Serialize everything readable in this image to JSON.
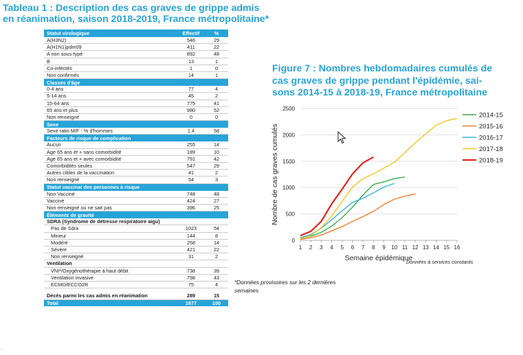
{
  "table": {
    "title_line1": "Tableau 1 : Description des cas graves de grippe admis",
    "title_line2": "en réanimation, saison 2018-2019, France métropolitaine*",
    "col_effectif": "Effectif",
    "col_pct": "%",
    "sections": [
      {
        "header": "Statut virologique",
        "rows": [
          {
            "label": "A(H3N2)",
            "v": "546",
            "p": "29"
          },
          {
            "label": "A(H1N1)pdm09",
            "v": "411",
            "p": "22"
          },
          {
            "label": "A non sous-typé",
            "v": "892",
            "p": "48"
          },
          {
            "label": "B",
            "v": "13",
            "p": "1"
          },
          {
            "label": "Co-infectés",
            "v": "1",
            "p": "0"
          },
          {
            "label": "Non confirmés",
            "v": "14",
            "p": "1"
          }
        ]
      },
      {
        "header": "Classes d'âge",
        "rows": [
          {
            "label": "0-4 ans",
            "v": "77",
            "p": "4"
          },
          {
            "label": "5-14 ans",
            "v": "45",
            "p": "2"
          },
          {
            "label": "15-64 ans",
            "v": "775",
            "p": "41"
          },
          {
            "label": "65 ans et plus",
            "v": "980",
            "p": "52"
          },
          {
            "label": "Non renseigné",
            "v": "0",
            "p": "0"
          }
        ]
      },
      {
        "header": "Sexe",
        "rows": [
          {
            "label": "Sexe ratio M/F - % d'hommes",
            "v": "1.4",
            "p": "58"
          }
        ]
      },
      {
        "header": "Facteurs de risque de complication",
        "rows": [
          {
            "label": "Aucun",
            "v": "255",
            "p": "14"
          },
          {
            "label": "Age 65 ans et + sans comorbidité",
            "v": "189",
            "p": "10"
          },
          {
            "label": "Age 65 ans et + avec comorbidité",
            "v": "791",
            "p": "42"
          },
          {
            "label": "Comorbidités seules",
            "v": "547",
            "p": "29"
          },
          {
            "label": "Autres cibles de la vaccination",
            "v": "41",
            "p": "2"
          },
          {
            "label": "Non renseigné",
            "v": "54",
            "p": "3"
          }
        ]
      },
      {
        "header": "Statut vaccinal des personnes à risque",
        "rows": [
          {
            "label": "Non Vacciné",
            "v": "748",
            "p": "48"
          },
          {
            "label": "Vacciné",
            "v": "424",
            "p": "27"
          },
          {
            "label": "Non renseigné ou ne sait pas",
            "v": "396",
            "p": "25"
          }
        ]
      },
      {
        "header": "Éléments de gravité",
        "rows": [
          {
            "label": "SDRA (Syndrome de détresse respiratoire aigu)",
            "v": "",
            "p": "",
            "bold": true
          },
          {
            "label": "Pas de Sdra",
            "v": "1023",
            "p": "54",
            "indent": true
          },
          {
            "label": "Mineur",
            "v": "144",
            "p": "8",
            "indent": true
          },
          {
            "label": "Modéré",
            "v": "258",
            "p": "14",
            "indent": true
          },
          {
            "label": "Sévère",
            "v": "421",
            "p": "22",
            "indent": true
          },
          {
            "label": "Non renseigné",
            "v": "31",
            "p": "2",
            "indent": true
          },
          {
            "label": "Ventilation",
            "v": "",
            "p": "",
            "bold": true
          },
          {
            "label": "VNI*/Oxygénothérapie à haut débit",
            "v": "738",
            "p": "39",
            "indent": true
          },
          {
            "label": "Ventilation invasive",
            "v": "798",
            "p": "43",
            "indent": true
          },
          {
            "label": "ECMO/ECCO2R",
            "v": "75",
            "p": "4",
            "indent": true
          },
          {
            "gap": true
          },
          {
            "label": "Décès parmi les cas admis en réanimation",
            "v": "289",
            "p": "15",
            "bold": true
          }
        ]
      }
    ],
    "total": {
      "label": "Total",
      "v": "1877",
      "p": "100"
    }
  },
  "figure": {
    "title_line1": "Figure 7 : Nombres hebdomadaires cumulés de",
    "title_line2": "cas graves de grippe pendant l'épidémie, sai-",
    "title_line3": "sons 2014-15 à 2018-19, France métropolitaine"
  },
  "footnote": "*Données provisoires sur les 2 dernières semaines",
  "source_note": "Données à services constants",
  "page_mark": "´",
  "chart_data": {
    "type": "line",
    "title": "",
    "xlabel": "Semaine épidémique",
    "ylabel": "Nombre de cas graves cumulés",
    "xlim": [
      1,
      16
    ],
    "ylim": [
      0,
      2500
    ],
    "x_ticks": [
      1,
      2,
      3,
      4,
      5,
      6,
      7,
      8,
      9,
      10,
      11,
      12,
      13,
      14,
      15,
      16
    ],
    "y_ticks": [
      0,
      500,
      1000,
      1500,
      2000,
      2500
    ],
    "legend_position": "top-right",
    "grid": "horizontal",
    "series": [
      {
        "name": "2014-15",
        "color": "#3aaa4f",
        "x": [
          1,
          2,
          3,
          4,
          5,
          6,
          7,
          8,
          9,
          10,
          11
        ],
        "y": [
          40,
          80,
          150,
          270,
          430,
          630,
          860,
          1060,
          1110,
          1170,
          1200
        ]
      },
      {
        "name": "2015-16",
        "color": "#f07b2a",
        "x": [
          1,
          2,
          3,
          4,
          5,
          6,
          7,
          8,
          9,
          10,
          11,
          12
        ],
        "y": [
          20,
          50,
          100,
          180,
          260,
          360,
          450,
          550,
          680,
          780,
          840,
          880
        ]
      },
      {
        "name": "2016-17",
        "color": "#2fb5e0",
        "x": [
          1,
          2,
          3,
          4,
          5,
          6,
          7,
          8,
          9,
          10
        ],
        "y": [
          50,
          110,
          230,
          390,
          560,
          720,
          800,
          900,
          1010,
          1080
        ]
      },
      {
        "name": "2017-18",
        "color": "#f5c423",
        "x": [
          1,
          2,
          3,
          4,
          5,
          6,
          7,
          8,
          9,
          10,
          11,
          12,
          13,
          14,
          15,
          16
        ],
        "y": [
          30,
          90,
          240,
          460,
          740,
          1010,
          1170,
          1260,
          1370,
          1480,
          1660,
          1850,
          2020,
          2180,
          2270,
          2310
        ]
      },
      {
        "name": "2018-19",
        "color": "#e2231a",
        "x": [
          1,
          2,
          3,
          4,
          5,
          6,
          7,
          8
        ],
        "y": [
          90,
          170,
          360,
          690,
          970,
          1260,
          1470,
          1580
        ]
      }
    ]
  }
}
